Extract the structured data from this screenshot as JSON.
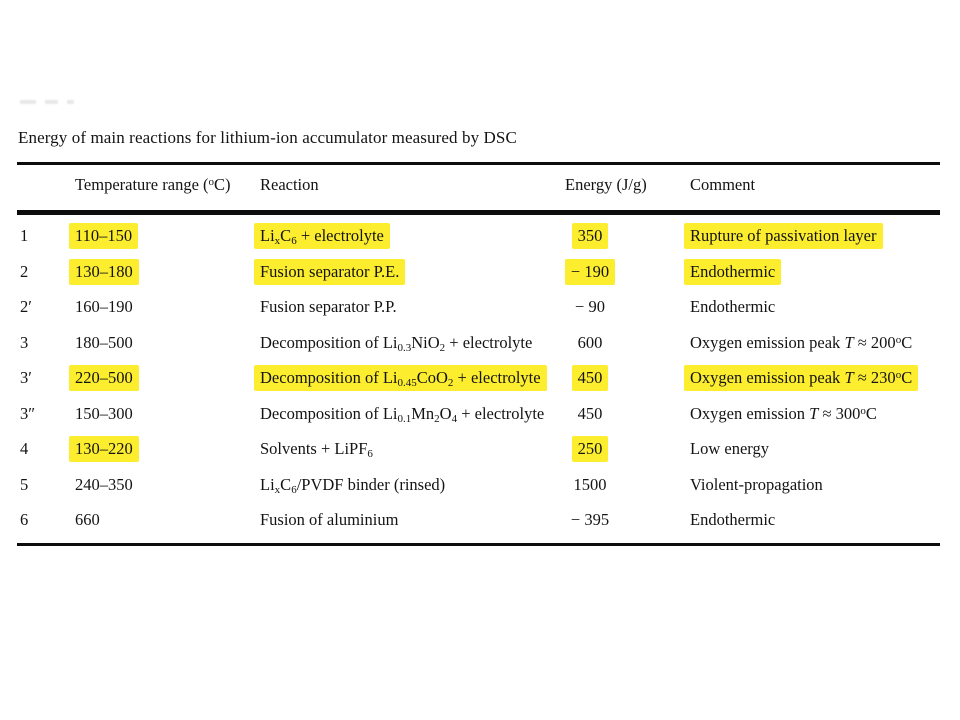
{
  "page": {
    "background": "#ffffff"
  },
  "table": {
    "title": "Energy of main reactions for lithium-ion accumulator measured by DSC",
    "highlight_color": "#fcee2e",
    "headers": {
      "index": "",
      "temperature": "Temperature range (^{o}C)",
      "reaction": "Reaction",
      "energy": "Energy (J/g)",
      "comment": "Comment"
    },
    "rows": [
      {
        "id": "1",
        "temperature": "110–150",
        "reaction": "Li_{x}C_{6} + electrolyte",
        "energy": "350",
        "comment": "Rupture of passivation layer",
        "highlight": {
          "temperature": true,
          "reaction": true,
          "energy": true,
          "comment": true
        }
      },
      {
        "id": "2",
        "temperature": "130–180",
        "reaction": "Fusion separator P.E.",
        "energy": "− 190",
        "comment": "Endothermic",
        "highlight": {
          "temperature": true,
          "reaction": true,
          "energy": true,
          "comment": true
        }
      },
      {
        "id": "2′",
        "temperature": "160–190",
        "reaction": "Fusion separator P.P.",
        "energy": "− 90",
        "comment": "Endothermic",
        "highlight": {}
      },
      {
        "id": "3",
        "temperature": "180–500",
        "reaction": "Decomposition of Li_{0.3}NiO_{2} + electrolyte",
        "energy": "600",
        "comment": "Oxygen emission peak *T* ≈ 200^{o}C",
        "highlight": {}
      },
      {
        "id": "3′",
        "temperature": "220–500",
        "reaction": "Decomposition of Li_{0.45}CoO_{2} + electrolyte",
        "energy": "450",
        "comment": "Oxygen emission peak *T* ≈ 230^{o}C",
        "highlight": {
          "temperature": true,
          "reaction": true,
          "energy": true,
          "comment": true
        }
      },
      {
        "id": "3″",
        "temperature": "150–300",
        "reaction": "Decomposition of Li_{0.1}Mn_{2}O_{4} + electrolyte",
        "energy": "450",
        "comment": "Oxygen emission *T* ≈ 300^{o}C",
        "highlight": {}
      },
      {
        "id": "4",
        "temperature": "130–220",
        "reaction": "Solvents + LiPF_{6}",
        "energy": "250",
        "comment": "Low energy",
        "highlight": {
          "temperature": true,
          "energy": true
        }
      },
      {
        "id": "5",
        "temperature": "240–350",
        "reaction": "Li_{x}C_{6}/PVDF binder (rinsed)",
        "energy": "1500",
        "comment": "Violent-propagation",
        "highlight": {}
      },
      {
        "id": "6",
        "temperature": "660",
        "reaction": "Fusion of aluminium",
        "energy": "− 395",
        "comment": "Endothermic",
        "highlight": {}
      }
    ]
  }
}
